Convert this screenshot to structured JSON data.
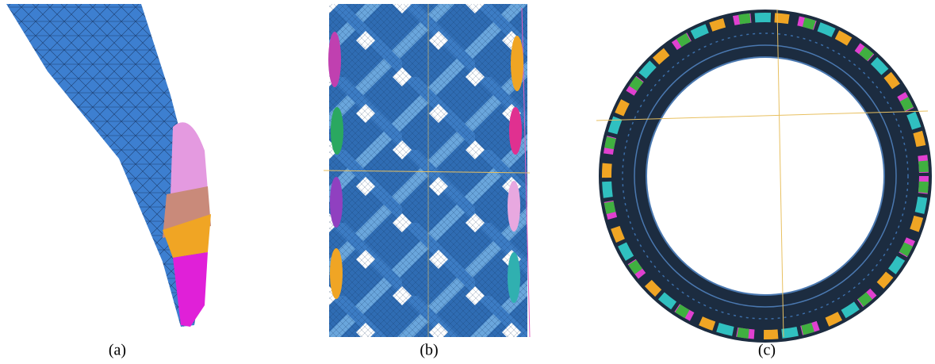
{
  "figure": {
    "panels": [
      {
        "caption": "(a)"
      },
      {
        "caption": "(b)"
      },
      {
        "caption": "(c)"
      }
    ]
  }
}
